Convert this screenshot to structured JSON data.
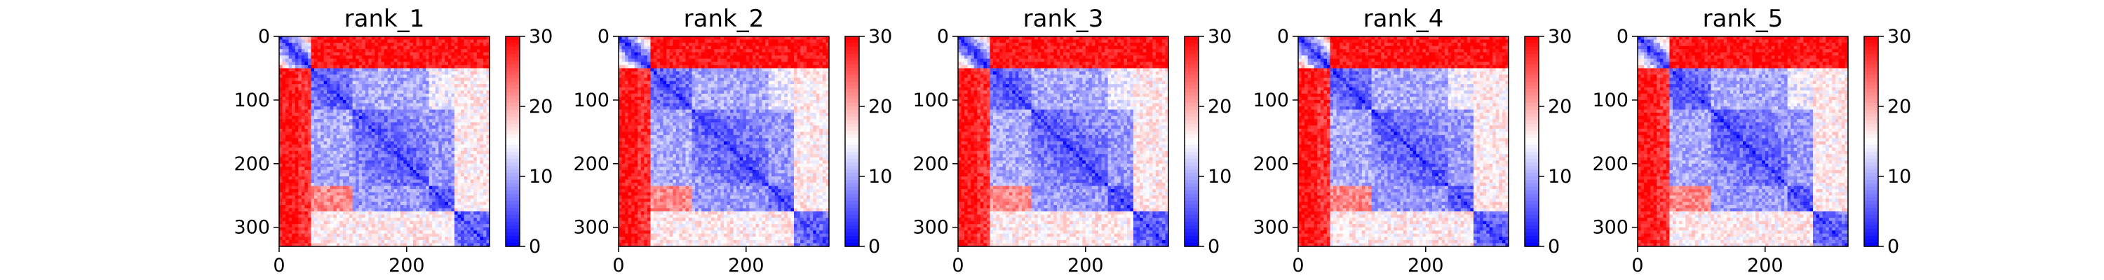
{
  "chart_data": {
    "type": "heatmap",
    "colormap": {
      "name": "bwr",
      "low": "#0000ff",
      "mid": "#ffffff",
      "high": "#ff0000"
    },
    "matrix_size": 330,
    "xlim": [
      0,
      330
    ],
    "ylim": [
      330,
      0
    ],
    "xticks": [
      0,
      200
    ],
    "yticks": [
      0,
      100,
      200,
      300
    ],
    "colorbar": {
      "range": [
        0,
        30
      ],
      "ticks": [
        0,
        10,
        20,
        30
      ]
    },
    "block_boundaries": [
      50,
      115,
      235,
      275,
      330
    ],
    "panels": [
      {
        "title": "rank_1"
      },
      {
        "title": "rank_2"
      },
      {
        "title": "rank_3"
      },
      {
        "title": "rank_4"
      },
      {
        "title": "rank_5"
      }
    ]
  }
}
